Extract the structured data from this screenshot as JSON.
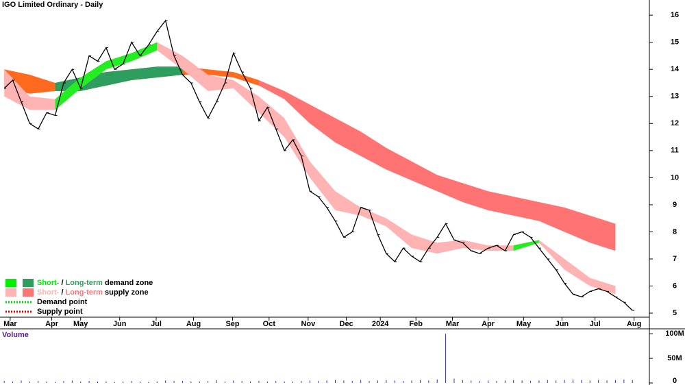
{
  "chart_data": [
    {
      "type": "price",
      "title": "IGO Limited Ordinary - Daily",
      "xlim": [
        -0.5,
        76
      ],
      "ylim": [
        4.85,
        16.56
      ],
      "yticks": [
        5,
        6,
        7,
        8,
        9,
        10,
        11,
        12,
        13,
        14,
        15,
        16
      ],
      "xticks": [
        {
          "value": 0.7,
          "label": "Mar"
        },
        {
          "value": 5.6,
          "label": "Apr"
        },
        {
          "value": 9.0,
          "label": "May"
        },
        {
          "value": 13.6,
          "label": "Jun"
        },
        {
          "value": 17.9,
          "label": "Jul"
        },
        {
          "value": 22.3,
          "label": "Aug"
        },
        {
          "value": 26.9,
          "label": "Sep"
        },
        {
          "value": 31.2,
          "label": "Oct"
        },
        {
          "value": 35.8,
          "label": "Nov"
        },
        {
          "value": 40.3,
          "label": "Dec"
        },
        {
          "value": 44.3,
          "label": "2024"
        },
        {
          "value": 48.5,
          "label": "Feb"
        },
        {
          "value": 52.8,
          "label": "Mar"
        },
        {
          "value": 57.0,
          "label": "Apr"
        },
        {
          "value": 61.2,
          "label": "May"
        },
        {
          "value": 65.7,
          "label": "Jun"
        },
        {
          "value": 69.6,
          "label": "Jul"
        },
        {
          "value": 74.2,
          "label": "Aug"
        }
      ],
      "price": {
        "color": "#000000",
        "values": [
          13.3,
          13.6,
          12.8,
          12.0,
          11.8,
          12.4,
          12.3,
          13.5,
          14.0,
          13.3,
          14.5,
          14.3,
          14.8,
          14.0,
          14.2,
          15.0,
          14.5,
          14.9,
          15.4,
          15.8,
          14.5,
          13.8,
          13.5,
          12.8,
          12.2,
          12.8,
          13.5,
          14.6,
          13.9,
          13.3,
          12.1,
          12.6,
          11.8,
          11.0,
          11.4,
          10.8,
          9.5,
          9.3,
          8.9,
          8.4,
          7.8,
          8.0,
          8.9,
          8.8,
          7.9,
          7.2,
          6.9,
          7.4,
          7.1,
          6.9,
          7.4,
          7.8,
          8.3,
          7.7,
          7.6,
          7.3,
          7.2,
          7.4,
          7.5,
          7.3,
          7.9,
          8.0,
          7.8,
          7.4,
          7.0,
          6.6,
          6.1,
          5.7,
          5.6,
          5.8,
          5.9,
          5.8,
          5.6,
          5.4,
          5.1
        ]
      },
      "bands": [
        {
          "color": "#ff6a1f",
          "x": [
            0,
            3,
            6,
            9,
            12,
            15,
            18,
            21,
            24,
            27,
            30,
            33,
            36,
            39,
            42,
            45,
            48,
            51,
            54,
            57,
            60,
            63,
            66,
            69,
            72
          ],
          "upper": [
            14.0,
            13.8,
            13.5,
            13.7,
            13.9,
            14.0,
            14.1,
            14.1,
            14.0,
            13.9,
            13.6,
            null,
            null,
            null,
            null,
            null,
            null,
            null,
            null,
            null,
            null,
            null,
            null,
            null,
            null
          ],
          "lower": [
            13.3,
            13.1,
            13.2,
            13.2,
            13.4,
            13.6,
            13.7,
            13.8,
            13.8,
            13.7,
            13.4,
            null,
            null,
            null,
            null,
            null,
            null,
            null,
            null,
            null,
            null,
            null,
            null,
            null,
            null
          ]
        },
        {
          "color": "#2e9e5e",
          "x": [
            0,
            3,
            6,
            9,
            12,
            15,
            18,
            21,
            24,
            27,
            30,
            33,
            36,
            39,
            42,
            45,
            48,
            51,
            54,
            57,
            60,
            63,
            66,
            69,
            72
          ],
          "upper": [
            null,
            null,
            13.5,
            13.7,
            13.9,
            14.0,
            14.1,
            14.1,
            null,
            null,
            null,
            null,
            null,
            null,
            null,
            null,
            null,
            null,
            null,
            null,
            null,
            null,
            null,
            null,
            null
          ],
          "lower": [
            null,
            null,
            13.2,
            13.2,
            13.4,
            13.6,
            13.7,
            13.8,
            null,
            null,
            null,
            null,
            null,
            null,
            null,
            null,
            null,
            null,
            null,
            null,
            null,
            null,
            null,
            null,
            null
          ]
        },
        {
          "color": "#ff7373",
          "x": [
            0,
            3,
            6,
            9,
            12,
            15,
            18,
            21,
            24,
            27,
            30,
            33,
            36,
            39,
            42,
            45,
            48,
            51,
            54,
            57,
            60,
            63,
            66,
            69,
            72
          ],
          "upper": [
            null,
            null,
            null,
            null,
            null,
            null,
            null,
            null,
            null,
            null,
            13.6,
            13.2,
            12.7,
            12.2,
            11.7,
            11.1,
            10.6,
            10.1,
            9.8,
            9.5,
            9.3,
            9.1,
            8.9,
            8.6,
            8.3
          ],
          "lower": [
            null,
            null,
            null,
            null,
            null,
            null,
            null,
            null,
            null,
            null,
            13.4,
            12.9,
            12.0,
            11.3,
            10.8,
            10.3,
            9.9,
            9.5,
            9.1,
            8.8,
            8.6,
            8.4,
            8.0,
            7.6,
            7.3
          ]
        },
        {
          "color": "#ffb3b3",
          "x": [
            0,
            3,
            6,
            9,
            12,
            15,
            18,
            21,
            24,
            27,
            30,
            33,
            36,
            39,
            42,
            45,
            48,
            51,
            54,
            57,
            60,
            63,
            66,
            69,
            72
          ],
          "upper": [
            14.0,
            13.0,
            12.9,
            13.7,
            14.3,
            14.6,
            15.0,
            14.5,
            13.8,
            13.6,
            13.0,
            12.2,
            10.6,
            9.5,
            8.9,
            8.5,
            7.9,
            7.6,
            7.7,
            7.5,
            7.5,
            7.7,
            7.0,
            6.3,
            6.0
          ],
          "lower": [
            13.0,
            12.5,
            12.5,
            13.3,
            14.0,
            14.3,
            14.7,
            14.0,
            13.2,
            13.3,
            12.4,
            11.5,
            10.0,
            8.8,
            8.6,
            8.2,
            7.4,
            7.2,
            7.4,
            7.3,
            7.3,
            7.6,
            6.6,
            6.0,
            5.7
          ]
        },
        {
          "color": "#22ee22",
          "x": [
            0,
            3,
            6,
            9,
            12,
            15,
            18,
            21,
            24,
            27,
            30,
            33,
            36,
            39,
            42,
            45,
            48,
            51,
            54,
            57,
            60,
            63,
            66,
            69,
            72
          ],
          "upper": [
            null,
            null,
            12.9,
            13.7,
            14.3,
            14.6,
            15.0,
            null,
            null,
            null,
            null,
            null,
            null,
            null,
            null,
            null,
            null,
            null,
            null,
            null,
            7.5,
            7.7,
            null,
            null,
            null
          ],
          "lower": [
            null,
            null,
            12.5,
            13.3,
            14.0,
            14.3,
            14.7,
            null,
            null,
            null,
            null,
            null,
            null,
            null,
            null,
            null,
            null,
            null,
            null,
            null,
            7.3,
            7.6,
            null,
            null,
            null
          ]
        }
      ],
      "legend": [
        {
          "colors": [
            "#00ee00",
            "#2e9e5e"
          ],
          "parts": [
            "Short-",
            " / ",
            "Long-term",
            " demand zone"
          ]
        },
        {
          "colors": [
            "#ffb3b3",
            "#ff7373"
          ],
          "parts": [
            "Short-",
            " / ",
            "Long-term",
            " supply zone"
          ]
        },
        {
          "line_color": "#00cc00",
          "text": "Demand point"
        },
        {
          "line_color": "#dd0000",
          "text": "Supply point"
        }
      ]
    },
    {
      "type": "volume",
      "title": "Volume",
      "xlim": [
        -0.5,
        76
      ],
      "ylim": [
        0,
        110000000
      ],
      "color": "#3333aa",
      "yticks": [
        0,
        {
          "value": 50000000,
          "label": "50M"
        },
        {
          "value": 100000000,
          "label": "100M"
        }
      ],
      "values": [
        4000000,
        3000000,
        5000000,
        3000000,
        4000000,
        3000000,
        2000000,
        4000000,
        5000000,
        3000000,
        4000000,
        3000000,
        3000000,
        2000000,
        3000000,
        4000000,
        3000000,
        2000000,
        3000000,
        5000000,
        4000000,
        4000000,
        3000000,
        3000000,
        4000000,
        6000000,
        3000000,
        5000000,
        4000000,
        3000000,
        4000000,
        3000000,
        4000000,
        3000000,
        3000000,
        4000000,
        5000000,
        4000000,
        5000000,
        6000000,
        5000000,
        4000000,
        6000000,
        4000000,
        5000000,
        6000000,
        5000000,
        4000000,
        5000000,
        6000000,
        5000000,
        7000000,
        100000000,
        9000000,
        6000000,
        5000000,
        4000000,
        5000000,
        4000000,
        5000000,
        6000000,
        5000000,
        4000000,
        5000000,
        6000000,
        5000000,
        6000000,
        7000000,
        6000000,
        5000000,
        6000000,
        5000000,
        6000000,
        7000000,
        6000000
      ]
    }
  ]
}
